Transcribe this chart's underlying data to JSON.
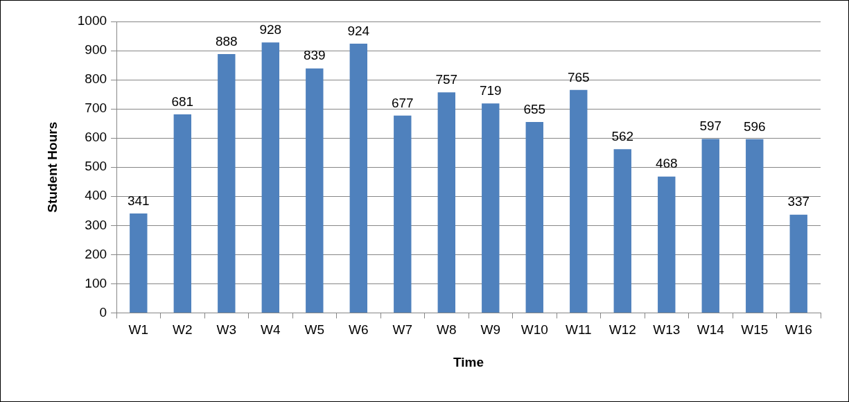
{
  "chart_data": {
    "type": "bar",
    "xlabel": "Time",
    "ylabel": "Student Hours",
    "categories": [
      "W1",
      "W2",
      "W3",
      "W4",
      "W5",
      "W6",
      "W7",
      "W8",
      "W9",
      "W10",
      "W11",
      "W12",
      "W13",
      "W14",
      "W15",
      "W16"
    ],
    "values": [
      341,
      681,
      888,
      928,
      839,
      924,
      677,
      757,
      719,
      655,
      765,
      562,
      468,
      597,
      596,
      337
    ],
    "color": "#4f81bd",
    "ylim": [
      0,
      1000
    ],
    "yticks": [
      0,
      100,
      200,
      300,
      400,
      500,
      600,
      700,
      800,
      900,
      1000
    ],
    "grid": "y",
    "legend": false,
    "data_labels": true
  }
}
